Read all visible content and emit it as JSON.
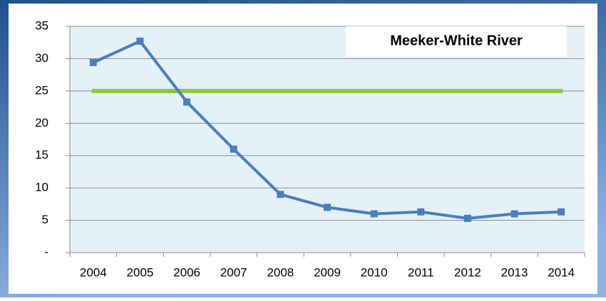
{
  "chart_data": {
    "type": "line",
    "title": "Meeker-White River",
    "categories": [
      "2004",
      "2005",
      "2006",
      "2007",
      "2008",
      "2009",
      "2010",
      "2011",
      "2012",
      "2013",
      "2014"
    ],
    "series": [
      {
        "color": "#4a7ebb",
        "values": [
          29.4,
          32.7,
          23.3,
          16.0,
          9.0,
          7.0,
          6.0,
          6.3,
          5.3,
          6.0,
          6.3
        ]
      },
      {
        "color": "#8cc63f",
        "values": [
          25,
          25,
          25,
          25,
          25,
          25,
          25,
          25,
          25,
          25,
          25
        ]
      }
    ],
    "ylim": [
      0,
      35
    ],
    "yticks": [
      {
        "value": 0,
        "label": "-"
      },
      5,
      10,
      15,
      20,
      25,
      30,
      35
    ],
    "grid": true
  }
}
